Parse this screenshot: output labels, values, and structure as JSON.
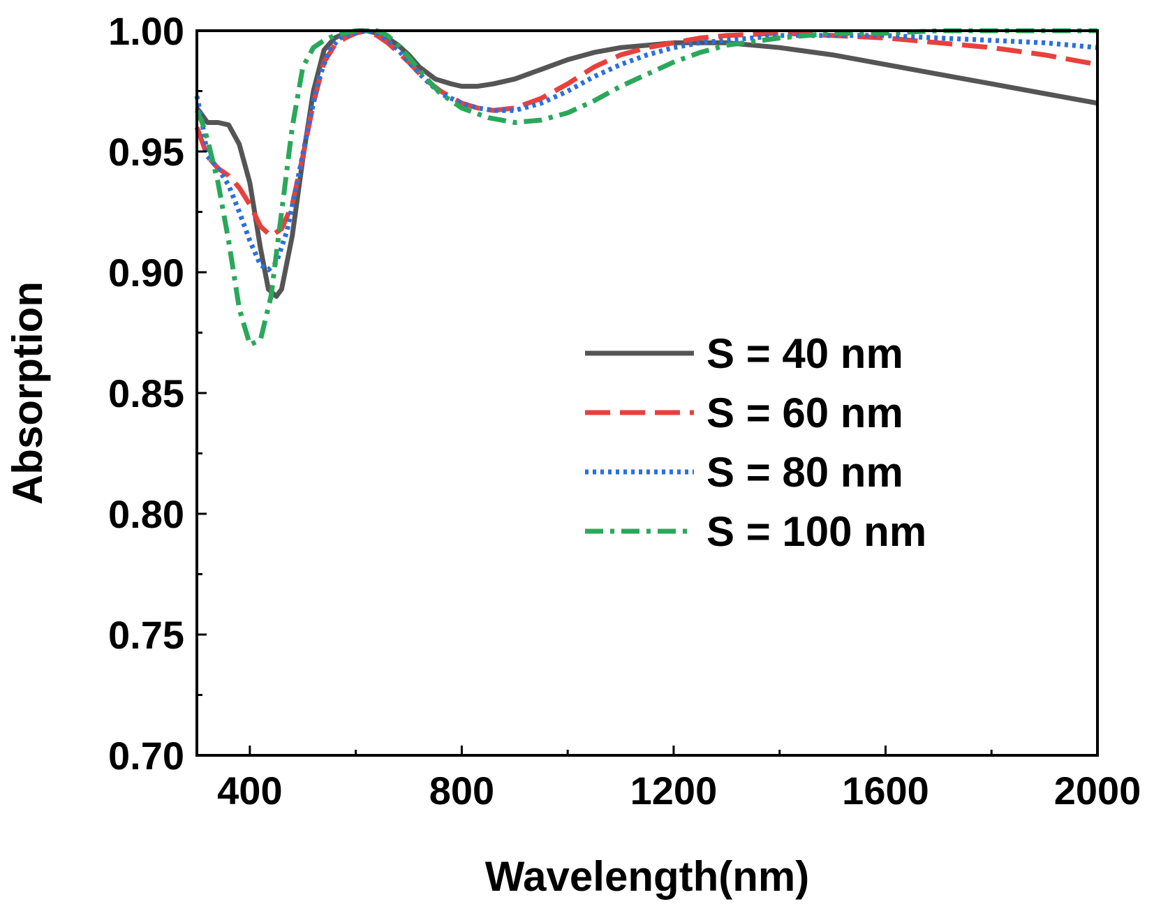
{
  "chart_data": {
    "type": "line",
    "title": "",
    "xlabel": "Wavelength(nm)",
    "ylabel": "Absorption",
    "xlim": [
      300,
      2000
    ],
    "ylim": [
      0.7,
      1.0
    ],
    "x_ticks": [
      400,
      800,
      1200,
      1600,
      2000
    ],
    "x_minor_ticks": [
      600,
      1000,
      1400,
      1800
    ],
    "x_tick_labels": [
      "400",
      "800",
      "1200",
      "1600",
      "2000"
    ],
    "y_ticks": [
      0.7,
      0.75,
      0.8,
      0.85,
      0.9,
      0.95,
      1.0
    ],
    "y_minor_ticks": [
      0.725,
      0.775,
      0.825,
      0.875,
      0.925,
      0.975
    ],
    "y_tick_labels": [
      "0.70",
      "0.75",
      "0.80",
      "0.85",
      "0.90",
      "0.95",
      "1.00"
    ],
    "grid": false,
    "legend_position": "center-right",
    "series": [
      {
        "name": "S = 40 nm",
        "color": "#555555",
        "dash": "solid",
        "points": [
          [
            300,
            0.968
          ],
          [
            320,
            0.962
          ],
          [
            340,
            0.962
          ],
          [
            360,
            0.961
          ],
          [
            380,
            0.953
          ],
          [
            400,
            0.937
          ],
          [
            420,
            0.91
          ],
          [
            435,
            0.893
          ],
          [
            450,
            0.89
          ],
          [
            460,
            0.893
          ],
          [
            480,
            0.915
          ],
          [
            500,
            0.947
          ],
          [
            520,
            0.975
          ],
          [
            540,
            0.992
          ],
          [
            560,
            0.997
          ],
          [
            580,
            0.999
          ],
          [
            600,
            1.0
          ],
          [
            620,
            1.0
          ],
          [
            640,
            0.999
          ],
          [
            660,
            0.997
          ],
          [
            680,
            0.994
          ],
          [
            700,
            0.99
          ],
          [
            720,
            0.985
          ],
          [
            750,
            0.98
          ],
          [
            780,
            0.978
          ],
          [
            800,
            0.977
          ],
          [
            830,
            0.977
          ],
          [
            860,
            0.978
          ],
          [
            900,
            0.98
          ],
          [
            950,
            0.984
          ],
          [
            1000,
            0.988
          ],
          [
            1050,
            0.991
          ],
          [
            1100,
            0.993
          ],
          [
            1150,
            0.994
          ],
          [
            1200,
            0.995
          ],
          [
            1250,
            0.995
          ],
          [
            1300,
            0.995
          ],
          [
            1400,
            0.993
          ],
          [
            1500,
            0.99
          ],
          [
            1600,
            0.986
          ],
          [
            1700,
            0.982
          ],
          [
            1800,
            0.978
          ],
          [
            1900,
            0.974
          ],
          [
            2000,
            0.97
          ]
        ]
      },
      {
        "name": "S = 60 nm",
        "color": "#e8413c",
        "dash": "long-dash",
        "points": [
          [
            300,
            0.96
          ],
          [
            320,
            0.948
          ],
          [
            340,
            0.943
          ],
          [
            360,
            0.94
          ],
          [
            380,
            0.935
          ],
          [
            400,
            0.928
          ],
          [
            420,
            0.919
          ],
          [
            440,
            0.915
          ],
          [
            460,
            0.918
          ],
          [
            480,
            0.928
          ],
          [
            500,
            0.948
          ],
          [
            520,
            0.97
          ],
          [
            540,
            0.987
          ],
          [
            560,
            0.994
          ],
          [
            580,
            0.997
          ],
          [
            600,
            0.999
          ],
          [
            620,
            1.0
          ],
          [
            640,
            0.998
          ],
          [
            660,
            0.995
          ],
          [
            680,
            0.991
          ],
          [
            700,
            0.987
          ],
          [
            730,
            0.98
          ],
          [
            760,
            0.975
          ],
          [
            800,
            0.97
          ],
          [
            830,
            0.968
          ],
          [
            860,
            0.967
          ],
          [
            900,
            0.968
          ],
          [
            950,
            0.972
          ],
          [
            1000,
            0.978
          ],
          [
            1050,
            0.985
          ],
          [
            1100,
            0.99
          ],
          [
            1150,
            0.993
          ],
          [
            1200,
            0.995
          ],
          [
            1250,
            0.997
          ],
          [
            1300,
            0.998
          ],
          [
            1400,
            0.999
          ],
          [
            1500,
            0.998
          ],
          [
            1600,
            0.997
          ],
          [
            1700,
            0.995
          ],
          [
            1800,
            0.993
          ],
          [
            1900,
            0.99
          ],
          [
            2000,
            0.986
          ]
        ]
      },
      {
        "name": "S = 80 nm",
        "color": "#2b6fdc",
        "dash": "dotted",
        "points": [
          [
            300,
            0.973
          ],
          [
            310,
            0.962
          ],
          [
            320,
            0.948
          ],
          [
            340,
            0.943
          ],
          [
            360,
            0.936
          ],
          [
            380,
            0.925
          ],
          [
            400,
            0.913
          ],
          [
            420,
            0.903
          ],
          [
            435,
            0.901
          ],
          [
            450,
            0.904
          ],
          [
            470,
            0.917
          ],
          [
            490,
            0.938
          ],
          [
            510,
            0.96
          ],
          [
            530,
            0.98
          ],
          [
            550,
            0.992
          ],
          [
            570,
            0.997
          ],
          [
            600,
            0.999
          ],
          [
            620,
            1.0
          ],
          [
            640,
            0.999
          ],
          [
            660,
            0.996
          ],
          [
            680,
            0.992
          ],
          [
            700,
            0.987
          ],
          [
            730,
            0.98
          ],
          [
            760,
            0.974
          ],
          [
            800,
            0.97
          ],
          [
            830,
            0.968
          ],
          [
            860,
            0.967
          ],
          [
            900,
            0.967
          ],
          [
            950,
            0.97
          ],
          [
            1000,
            0.975
          ],
          [
            1050,
            0.981
          ],
          [
            1100,
            0.986
          ],
          [
            1150,
            0.99
          ],
          [
            1200,
            0.993
          ],
          [
            1250,
            0.995
          ],
          [
            1300,
            0.996
          ],
          [
            1400,
            0.998
          ],
          [
            1500,
            0.998
          ],
          [
            1600,
            0.998
          ],
          [
            1700,
            0.997
          ],
          [
            1800,
            0.996
          ],
          [
            1900,
            0.995
          ],
          [
            2000,
            0.993
          ]
        ]
      },
      {
        "name": "S = 100 nm",
        "color": "#2aa85a",
        "dash": "dash-dot",
        "points": [
          [
            300,
            0.967
          ],
          [
            310,
            0.962
          ],
          [
            320,
            0.955
          ],
          [
            340,
            0.937
          ],
          [
            360,
            0.913
          ],
          [
            380,
            0.885
          ],
          [
            400,
            0.87
          ],
          [
            420,
            0.872
          ],
          [
            440,
            0.89
          ],
          [
            460,
            0.925
          ],
          [
            480,
            0.96
          ],
          [
            500,
            0.985
          ],
          [
            520,
            0.993
          ],
          [
            540,
            0.996
          ],
          [
            560,
            0.998
          ],
          [
            580,
            0.999
          ],
          [
            600,
            1.0
          ],
          [
            620,
            1.0
          ],
          [
            640,
            1.0
          ],
          [
            660,
            0.998
          ],
          [
            680,
            0.994
          ],
          [
            700,
            0.989
          ],
          [
            730,
            0.981
          ],
          [
            760,
            0.974
          ],
          [
            800,
            0.968
          ],
          [
            850,
            0.964
          ],
          [
            900,
            0.962
          ],
          [
            950,
            0.963
          ],
          [
            1000,
            0.966
          ],
          [
            1050,
            0.971
          ],
          [
            1100,
            0.977
          ],
          [
            1150,
            0.982
          ],
          [
            1200,
            0.987
          ],
          [
            1250,
            0.991
          ],
          [
            1300,
            0.994
          ],
          [
            1400,
            0.997
          ],
          [
            1500,
            0.999
          ],
          [
            1600,
            0.999
          ],
          [
            1700,
            1.0
          ],
          [
            1800,
            1.0
          ],
          [
            1900,
            1.0
          ],
          [
            2000,
            1.0
          ]
        ]
      }
    ]
  }
}
